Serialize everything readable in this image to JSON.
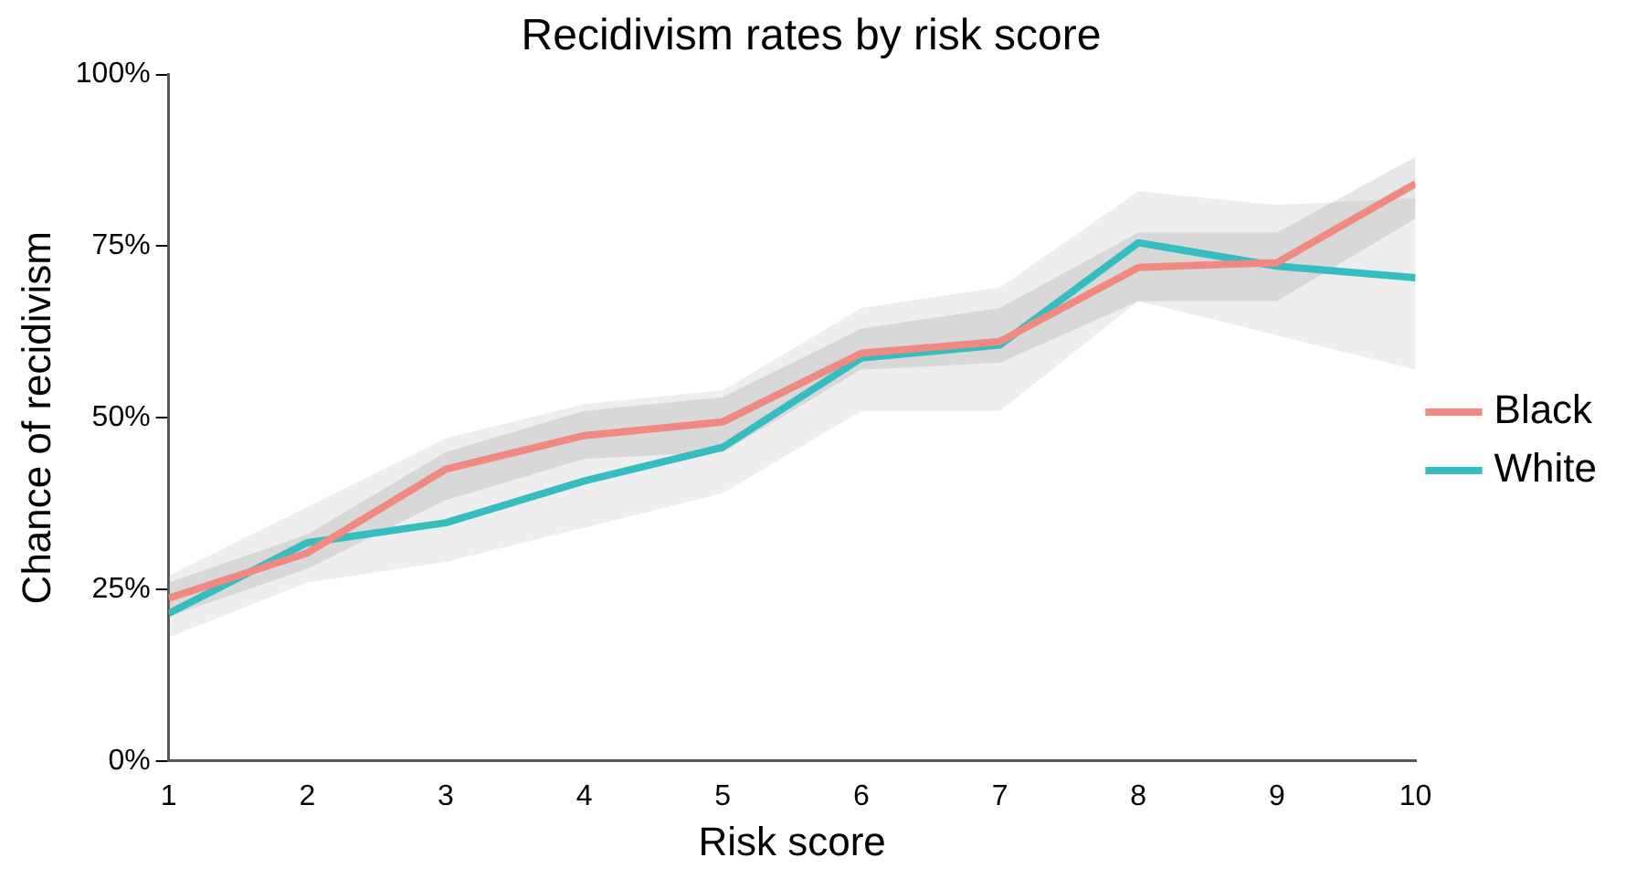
{
  "chart_data": {
    "type": "line",
    "title": "Recidivism rates by risk score",
    "xlabel": "Risk score",
    "ylabel": "Chance of recidivism",
    "x": [
      1,
      2,
      3,
      4,
      5,
      6,
      7,
      8,
      9,
      10
    ],
    "series": [
      {
        "name": "Black",
        "color": "#f08a80",
        "values": [
          23.7,
          30.3,
          42.5,
          47.4,
          49.4,
          59.4,
          61.1,
          71.9,
          72.6,
          84.1
        ],
        "lower": [
          21,
          28,
          38,
          44,
          45,
          57,
          58,
          67,
          67,
          79
        ],
        "upper": [
          26,
          33,
          45,
          51,
          53,
          63,
          66,
          77,
          77,
          88
        ]
      },
      {
        "name": "White",
        "color": "#35bdc0",
        "values": [
          21.5,
          31.8,
          34.7,
          40.8,
          45.7,
          58.7,
          60.6,
          75.5,
          72.1,
          70.4
        ],
        "lower": [
          18,
          26,
          29,
          34,
          39,
          51,
          51,
          67,
          62,
          57
        ],
        "upper": [
          27,
          37,
          47,
          52,
          54,
          66,
          69,
          83,
          81,
          82
        ]
      }
    ],
    "xlim": [
      1,
      10
    ],
    "xticks": [
      1,
      2,
      3,
      4,
      5,
      6,
      7,
      8,
      9,
      10
    ],
    "ylim": [
      0,
      100
    ],
    "yticks": [
      {
        "value": 0,
        "label": "0%"
      },
      {
        "value": 25,
        "label": "25%"
      },
      {
        "value": 50,
        "label": "50%"
      },
      {
        "value": 75,
        "label": "75%"
      },
      {
        "value": 100,
        "label": "100%"
      }
    ],
    "grid": false,
    "legend": "right",
    "marker": "none"
  }
}
